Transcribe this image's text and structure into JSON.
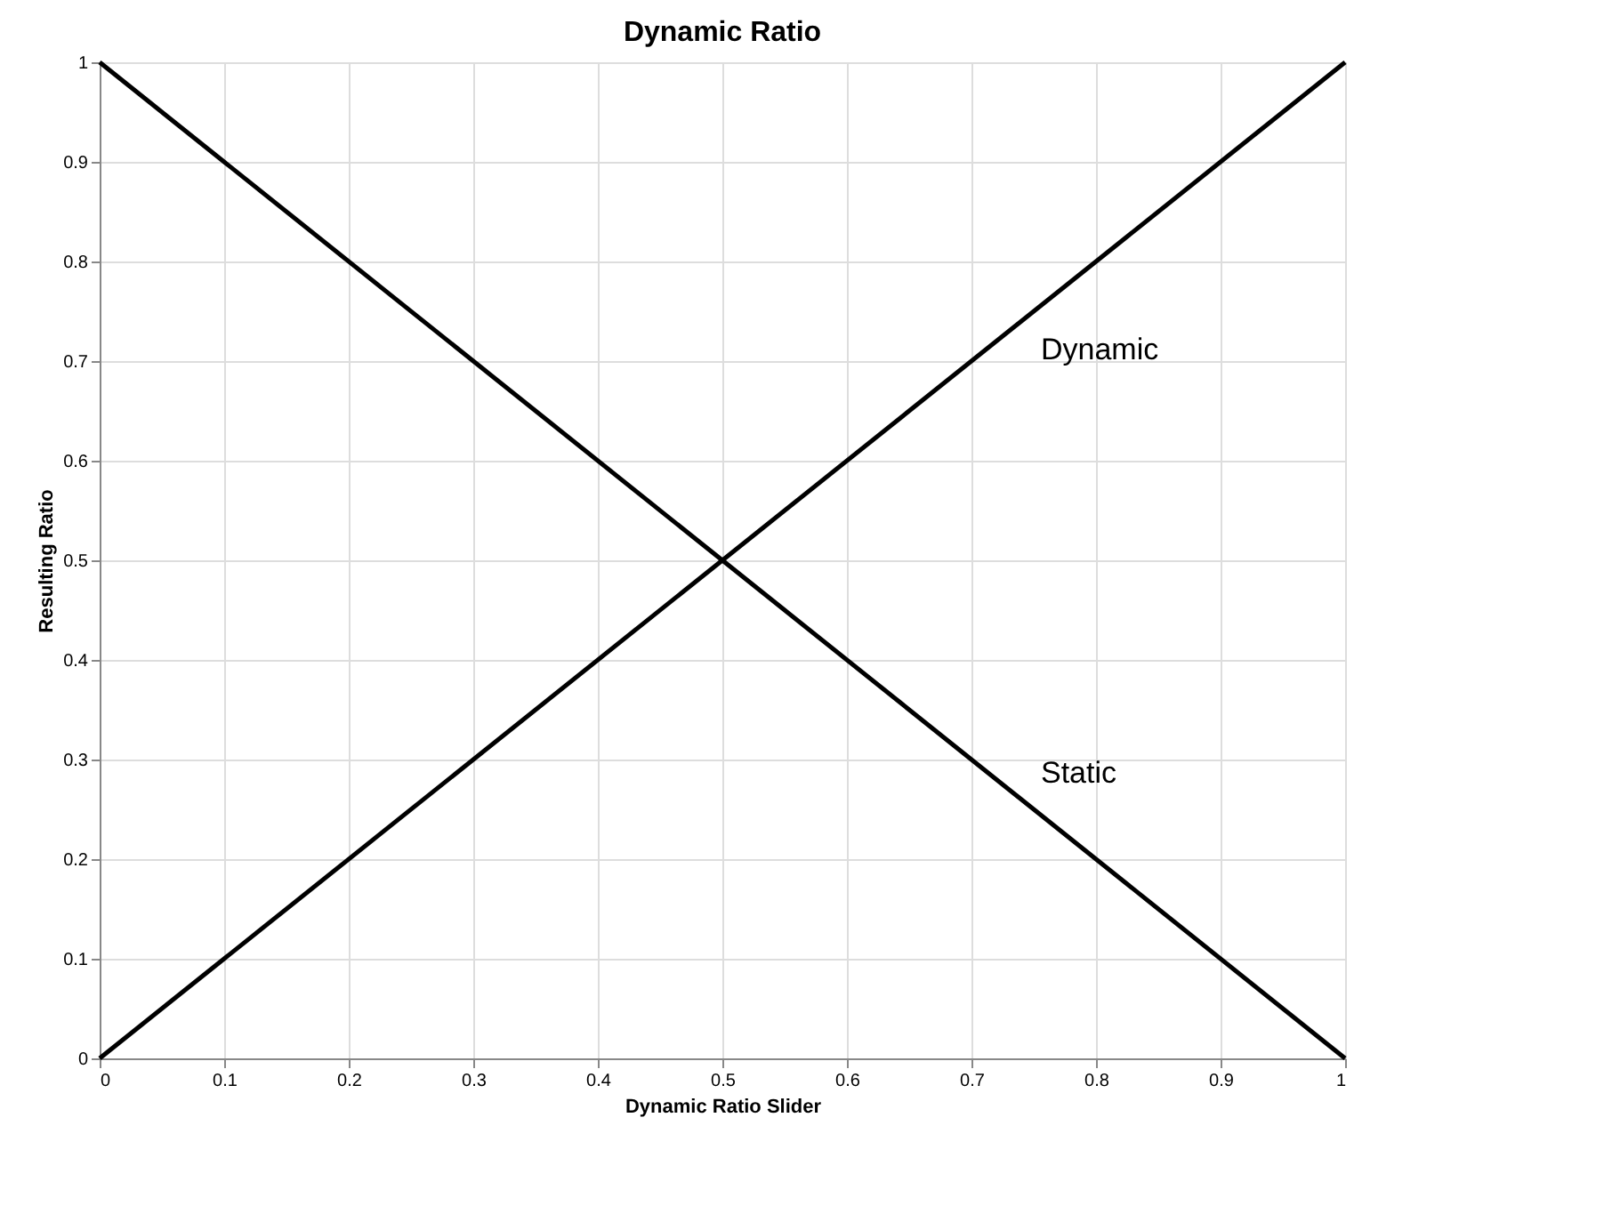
{
  "chart_data": {
    "type": "line",
    "title": "Dynamic Ratio",
    "xlabel": "Dynamic Ratio Slider",
    "ylabel": "Resulting Ratio",
    "x": [
      0,
      0.5,
      1
    ],
    "series": [
      {
        "name": "Dynamic",
        "color": "#000000",
        "values": [
          0,
          0.5,
          1
        ]
      },
      {
        "name": "Static",
        "color": "#000000",
        "values": [
          1,
          0.5,
          0
        ]
      }
    ],
    "xlim": [
      0,
      1
    ],
    "ylim": [
      0,
      1
    ],
    "xticks": [
      0,
      0.1,
      0.2,
      0.3,
      0.4,
      0.5,
      0.6,
      0.7,
      0.8,
      0.9,
      1
    ],
    "yticks": [
      0,
      0.1,
      0.2,
      0.3,
      0.4,
      0.5,
      0.6,
      0.7,
      0.8,
      0.9,
      1
    ],
    "grid": true,
    "marker": "none",
    "line_style": "solid"
  }
}
